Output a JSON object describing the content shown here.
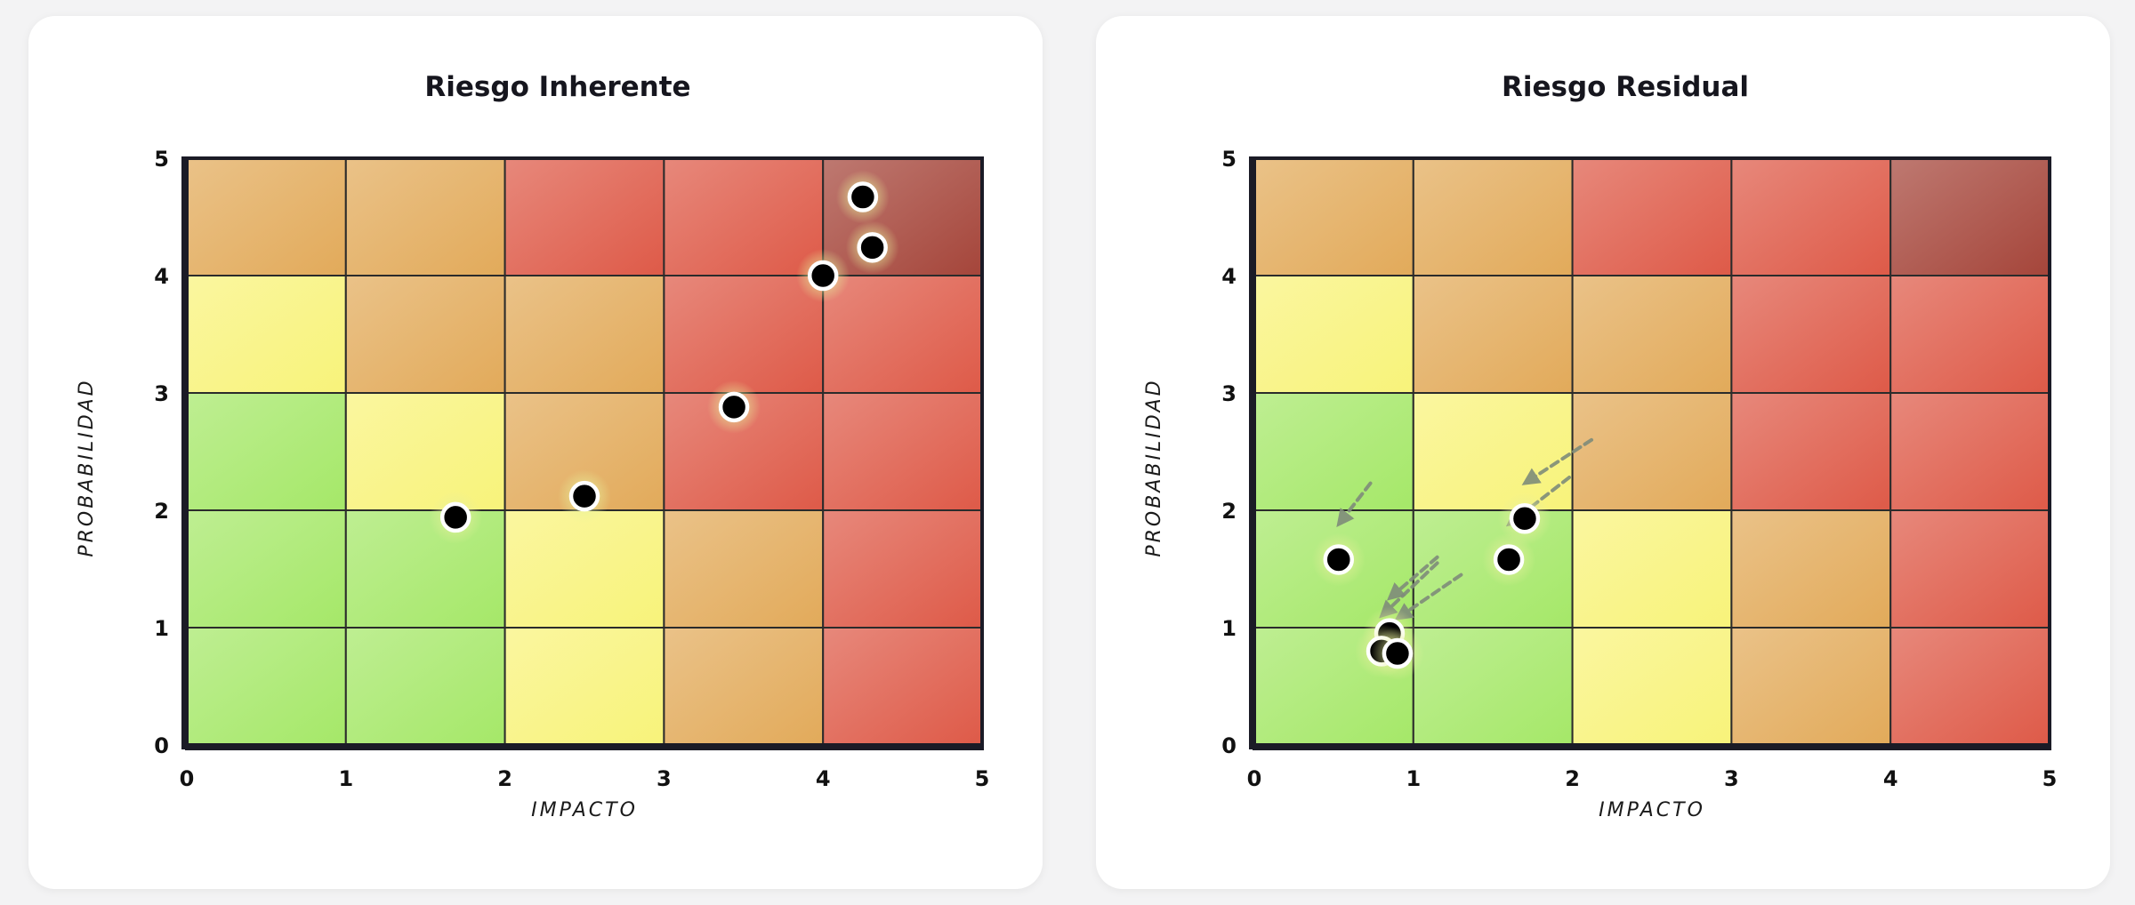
{
  "colors": {
    "green": "#a5e868",
    "yellow": "#f8f37a",
    "orange": "#e2aa5a",
    "red": "#de5a48",
    "darkred": "#a5453a",
    "point": "#000000",
    "arrow": "#7f8c7a"
  },
  "chart_data": [
    {
      "type": "scatter",
      "title": "Riesgo Inherente",
      "xlabel": "IMPACTO",
      "ylabel": "PROBABILIDAD",
      "xlim": [
        0,
        5
      ],
      "ylim": [
        0,
        5
      ],
      "x_ticks": [
        "0",
        "1",
        "2",
        "3",
        "4",
        "5"
      ],
      "y_ticks": [
        "0",
        "1",
        "2",
        "3",
        "4",
        "5"
      ],
      "heatmap_levels": [
        [
          "orange",
          "orange",
          "red",
          "red",
          "darkred"
        ],
        [
          "yellow",
          "orange",
          "orange",
          "red",
          "red"
        ],
        [
          "green",
          "yellow",
          "orange",
          "red",
          "red"
        ],
        [
          "green",
          "green",
          "yellow",
          "orange",
          "red"
        ],
        [
          "green",
          "green",
          "yellow",
          "orange",
          "red"
        ]
      ],
      "points": [
        {
          "x": 4.25,
          "y": 4.67
        },
        {
          "x": 4.31,
          "y": 4.24
        },
        {
          "x": 4.0,
          "y": 4.0
        },
        {
          "x": 3.44,
          "y": 2.88
        },
        {
          "x": 2.5,
          "y": 2.12
        },
        {
          "x": 1.69,
          "y": 1.94
        }
      ],
      "arrows": []
    },
    {
      "type": "scatter",
      "title": "Riesgo Residual",
      "xlabel": "IMPACTO",
      "ylabel": "PROBABILIDAD",
      "xlim": [
        0,
        5
      ],
      "ylim": [
        0,
        5
      ],
      "x_ticks": [
        "0",
        "1",
        "2",
        "3",
        "4",
        "5"
      ],
      "y_ticks": [
        "0",
        "1",
        "2",
        "3",
        "4",
        "5"
      ],
      "heatmap_levels": [
        [
          "orange",
          "orange",
          "red",
          "red",
          "darkred"
        ],
        [
          "yellow",
          "orange",
          "orange",
          "red",
          "red"
        ],
        [
          "green",
          "yellow",
          "orange",
          "red",
          "red"
        ],
        [
          "green",
          "green",
          "yellow",
          "orange",
          "red"
        ],
        [
          "green",
          "green",
          "yellow",
          "orange",
          "red"
        ]
      ],
      "points": [
        {
          "x": 0.53,
          "y": 1.58
        },
        {
          "x": 1.6,
          "y": 1.58
        },
        {
          "x": 1.7,
          "y": 1.93
        },
        {
          "x": 0.85,
          "y": 0.95
        },
        {
          "x": 0.8,
          "y": 0.8
        },
        {
          "x": 0.9,
          "y": 0.78
        }
      ],
      "arrows": [
        {
          "from": [
            0.73,
            2.23
          ],
          "to": [
            0.53,
            1.88
          ]
        },
        {
          "from": [
            2.12,
            2.6
          ],
          "to": [
            1.7,
            2.23
          ]
        },
        {
          "from": [
            1.15,
            1.6
          ],
          "to": [
            0.85,
            1.25
          ]
        },
        {
          "from": [
            1.3,
            1.45
          ],
          "to": [
            0.9,
            1.08
          ]
        },
        {
          "from": [
            1.15,
            1.55
          ],
          "to": [
            0.8,
            1.1
          ]
        },
        {
          "from": [
            1.98,
            2.28
          ],
          "to": [
            1.6,
            1.88
          ]
        }
      ]
    }
  ]
}
